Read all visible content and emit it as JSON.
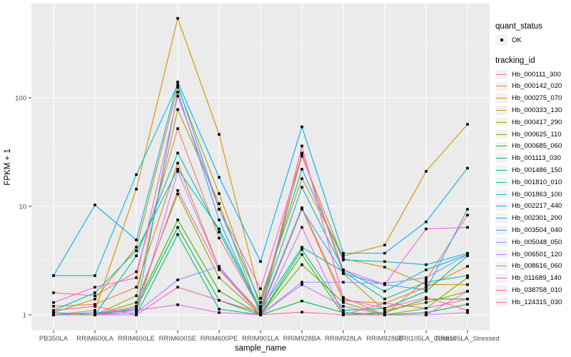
{
  "colors": {
    "panel_bg": "#EBEBEB",
    "grid": "#FFFFFF",
    "key_bg": "#F2F2F2",
    "tick_text": "#4D4D4D",
    "axis_title_text": "#000000",
    "point": "#000000"
  },
  "legend": {
    "quant_status_title": "quant_status",
    "quant_status_items": [
      {
        "label": "OK",
        "marker": "black-square-point"
      }
    ],
    "tracking_id_title": "tracking_id"
  },
  "chart_data": {
    "type": "line",
    "title": "",
    "xlabel": "sample_name",
    "ylabel": "FPKM + 1",
    "y_scale": "log10",
    "y_ticks": [
      1,
      10,
      100
    ],
    "y_minor_ticks": [
      3.162,
      31.62,
      316.2
    ],
    "ylim": [
      0.73,
      730
    ],
    "grid": true,
    "legend_position": "right",
    "point_marker": "small-black-square",
    "categories": [
      "PB350LA",
      "RRIM600LA",
      "RRIM600LE",
      "RRIM600SE",
      "RRIM600PE",
      "RRIM901LA",
      "RRIM928BA",
      "RRIM928LA",
      "RRIM928LE",
      "RRII105LA_Control",
      "RRII105LA_Stressed"
    ],
    "series": [
      {
        "name": "Hb_000111_300",
        "color": "#F8766D",
        "values": [
          1.6,
          1.5,
          2.5,
          52,
          5.1,
          1.1,
          9.7,
          1.45,
          1.0,
          2.1,
          8.3
        ]
      },
      {
        "name": "Hb_000142_020",
        "color": "#E88526",
        "values": [
          1.2,
          1.25,
          1.8,
          25,
          2.7,
          1.05,
          9.5,
          1.35,
          1.28,
          1.8,
          2.8
        ]
      },
      {
        "name": "Hb_000275_070",
        "color": "#D89000",
        "values": [
          1.0,
          1.1,
          14.4,
          540,
          46,
          1.42,
          18,
          3.5,
          4.4,
          21,
          57
        ]
      },
      {
        "name": "Hb_000333_130",
        "color": "#C09B00",
        "values": [
          1.05,
          1.4,
          4.2,
          125,
          13.1,
          1.2,
          29,
          3.3,
          2.75,
          1.9,
          1.9
        ]
      },
      {
        "name": "Hb_000417_290",
        "color": "#A3A500",
        "values": [
          1.0,
          1.0,
          1.5,
          78,
          10.6,
          1.0,
          31,
          2.4,
          1.1,
          1.3,
          1.65
        ]
      },
      {
        "name": "Hb_000625_110",
        "color": "#7CAE00",
        "values": [
          1.0,
          1.0,
          1.3,
          13,
          2.2,
          1.0,
          2.9,
          1.3,
          1.0,
          1.15,
          2.2
        ]
      },
      {
        "name": "Hb_000685_060",
        "color": "#39B600",
        "values": [
          1.0,
          1.0,
          1.2,
          7.5,
          1.66,
          1.0,
          3.6,
          1.0,
          1.05,
          1.4,
          1.4
        ]
      },
      {
        "name": "Hb_001113_030",
        "color": "#00BB4E",
        "values": [
          1.0,
          1.0,
          1.15,
          6.4,
          1.36,
          1.0,
          1.34,
          1.05,
          1.0,
          1.05,
          1.25
        ]
      },
      {
        "name": "Hb_001486_150",
        "color": "#00BF7D",
        "values": [
          1.0,
          1.0,
          1.0,
          5.5,
          1.13,
          1.0,
          4.0,
          1.1,
          1.15,
          1.65,
          3.5
        ]
      },
      {
        "name": "Hb_001810_010",
        "color": "#00C1A3",
        "values": [
          1.05,
          1.0,
          3.5,
          31,
          5.8,
          1.1,
          4.2,
          2.5,
          1.4,
          2.0,
          2.3
        ]
      },
      {
        "name": "Hb_001863_100",
        "color": "#00BFC4",
        "values": [
          1.1,
          1.6,
          3.9,
          22,
          6.2,
          1.15,
          15,
          2.6,
          1.65,
          2.6,
          3.6
        ]
      },
      {
        "name": "Hb_002217_440",
        "color": "#00BAE0",
        "values": [
          2.3,
          2.3,
          19.6,
          132,
          9.4,
          1.3,
          22,
          3.2,
          3.1,
          2.9,
          3.7
        ]
      },
      {
        "name": "Hb_002301_200",
        "color": "#00B0F6",
        "values": [
          2.3,
          10.3,
          4.9,
          140,
          18.5,
          3.1,
          54,
          3.7,
          3.7,
          7.2,
          22.5
        ]
      },
      {
        "name": "Hb_003504_040",
        "color": "#35A2FF",
        "values": [
          1.0,
          1.05,
          1.1,
          113,
          7.5,
          1.05,
          9.4,
          2.4,
          1.9,
          1.7,
          9.4
        ]
      },
      {
        "name": "Hb_005048_050",
        "color": "#9590FF",
        "values": [
          1.0,
          1.0,
          1.05,
          2.1,
          2.8,
          1.0,
          2.0,
          2.0,
          1.95,
          2.2,
          3.6
        ]
      },
      {
        "name": "Hb_006501_120",
        "color": "#C77CFF",
        "values": [
          1.0,
          1.0,
          1.0,
          21,
          2.7,
          1.0,
          1.9,
          1.2,
          1.0,
          1.0,
          1.05
        ]
      },
      {
        "name": "Hb_008616_060",
        "color": "#E76BF3",
        "values": [
          1.0,
          1.0,
          1.1,
          1.24,
          1.05,
          1.0,
          6.4,
          1.0,
          1.0,
          1.0,
          1.65
        ]
      },
      {
        "name": "Hb_011689_140",
        "color": "#FA62DB",
        "values": [
          1.3,
          1.8,
          2.2,
          104,
          9.4,
          1.74,
          30,
          2.6,
          1.9,
          6.2,
          6.4
        ]
      },
      {
        "name": "Hb_038758_010",
        "color": "#FF62BC",
        "values": [
          1.1,
          1.2,
          1.0,
          1.8,
          1.36,
          1.05,
          36,
          1.4,
          1.15,
          1.45,
          1.1
        ]
      },
      {
        "name": "Hb_124315_030",
        "color": "#FF6A98",
        "values": [
          1.0,
          1.0,
          1.2,
          14,
          2.6,
          1.0,
          1.06,
          1.0,
          1.28,
          1.15,
          1.4
        ]
      }
    ]
  }
}
